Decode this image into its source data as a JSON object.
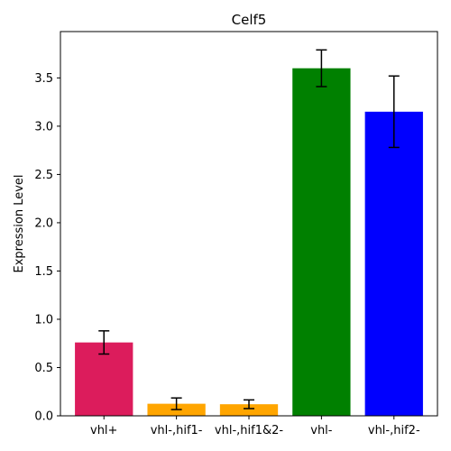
{
  "chart_data": {
    "type": "bar",
    "title": "Celf5",
    "xlabel": "",
    "ylabel": "Expression Level",
    "ylim": [
      0,
      3.98
    ],
    "yticks": [
      0.0,
      0.5,
      1.0,
      1.5,
      2.0,
      2.5,
      3.0,
      3.5
    ],
    "ytick_labels": [
      "0.0",
      "0.5",
      "1.0",
      "1.5",
      "2.0",
      "2.5",
      "3.0",
      "3.5"
    ],
    "categories": [
      "vhl+",
      "vhl-,hif1-",
      "vhl-,hif1&2-",
      "vhl-",
      "vhl-,hif2-"
    ],
    "values": [
      0.76,
      0.125,
      0.12,
      3.6,
      3.15
    ],
    "errors": [
      0.12,
      0.06,
      0.045,
      0.19,
      0.37
    ],
    "colors": [
      "#dc1c5c",
      "#ffa500",
      "#ffa500",
      "#008000",
      "#0000ff"
    ],
    "grid": false
  }
}
